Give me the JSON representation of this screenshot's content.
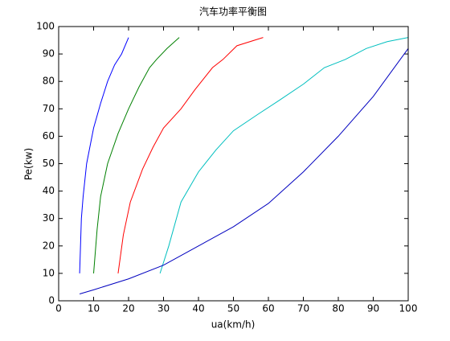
{
  "chart_data": {
    "type": "line",
    "title": "汽车功率平衡图",
    "xlabel": "ua(km/h)",
    "ylabel": "Pe(kw)",
    "xlim": [
      0,
      100
    ],
    "ylim": [
      0,
      100
    ],
    "xticks": [
      0,
      10,
      20,
      30,
      40,
      50,
      60,
      70,
      80,
      90,
      100
    ],
    "yticks": [
      0,
      10,
      20,
      30,
      40,
      50,
      60,
      70,
      80,
      90,
      100
    ],
    "series": [
      {
        "color": "#0000ff",
        "x": [
          6,
          6.5,
          7,
          8,
          10,
          12,
          14,
          16,
          18,
          20
        ],
        "values": [
          10,
          30,
          38,
          50,
          63,
          72,
          80,
          86,
          90,
          96
        ]
      },
      {
        "color": "#008000",
        "x": [
          10,
          11,
          12,
          14,
          17,
          20,
          23,
          26,
          28,
          31,
          34.5
        ],
        "values": [
          10,
          26,
          38,
          50,
          61,
          70,
          78,
          85,
          88,
          92,
          96
        ]
      },
      {
        "color": "#ff0000",
        "x": [
          17,
          18.5,
          20.5,
          24,
          27,
          30,
          35,
          39,
          44,
          47,
          51,
          58.5
        ],
        "values": [
          10,
          24,
          36,
          48,
          56,
          63,
          70,
          77,
          85,
          88,
          93,
          96
        ]
      },
      {
        "color": "#00bfbf",
        "x": [
          29,
          31.5,
          35,
          40,
          45,
          50,
          57,
          63,
          70,
          76,
          82,
          88,
          94,
          100
        ],
        "values": [
          10,
          20,
          36,
          47,
          55,
          62,
          68,
          73,
          79,
          85,
          88,
          92,
          94.5,
          96
        ]
      },
      {
        "color": "#0000bf",
        "x": [
          6,
          10,
          20,
          30,
          40,
          50,
          60,
          70,
          80,
          90,
          100
        ],
        "values": [
          2.5,
          4,
          8,
          13,
          20,
          27,
          35.5,
          47,
          60,
          74.5,
          92
        ]
      }
    ]
  }
}
